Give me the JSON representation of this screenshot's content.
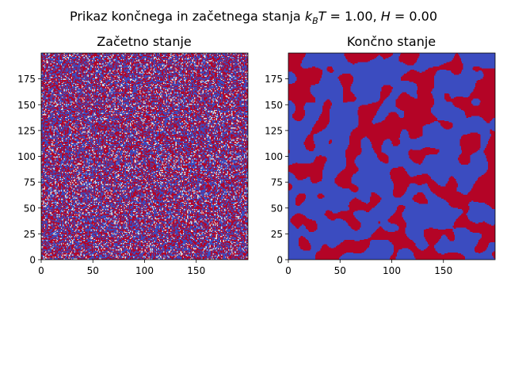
{
  "figure": {
    "suptitle_prefix": "Prikaz končnega in začetnega stanja ",
    "suptitle_math": "k_BT = 1.00, H = 0.00"
  },
  "colors": {
    "spin_down": "#3b4cc0",
    "spin_up": "#b40426",
    "mid": "#dddddd",
    "axis": "#000000"
  },
  "chart_data": [
    {
      "type": "heatmap",
      "title": "Začetno stanje",
      "description_of_state": "random",
      "colormap": "coolwarm",
      "values": [
        -1,
        1
      ],
      "grid_size": [
        200,
        200
      ],
      "xlim": [
        0,
        200
      ],
      "ylim": [
        200,
        0
      ],
      "xticks": [
        0,
        50,
        100,
        150
      ],
      "yticks": [
        0,
        25,
        50,
        75,
        100,
        125,
        150,
        175
      ],
      "xlabel": "",
      "ylabel": ""
    },
    {
      "type": "heatmap",
      "title": "Končno stanje",
      "description_of_state": "domains",
      "colormap": "coolwarm",
      "values": [
        -1,
        1
      ],
      "grid_size": [
        200,
        200
      ],
      "xlim": [
        0,
        200
      ],
      "ylim": [
        200,
        0
      ],
      "xticks": [
        0,
        50,
        100,
        150
      ],
      "yticks": [
        0,
        25,
        50,
        75,
        100,
        125,
        150,
        175
      ],
      "xlabel": "",
      "ylabel": ""
    }
  ]
}
